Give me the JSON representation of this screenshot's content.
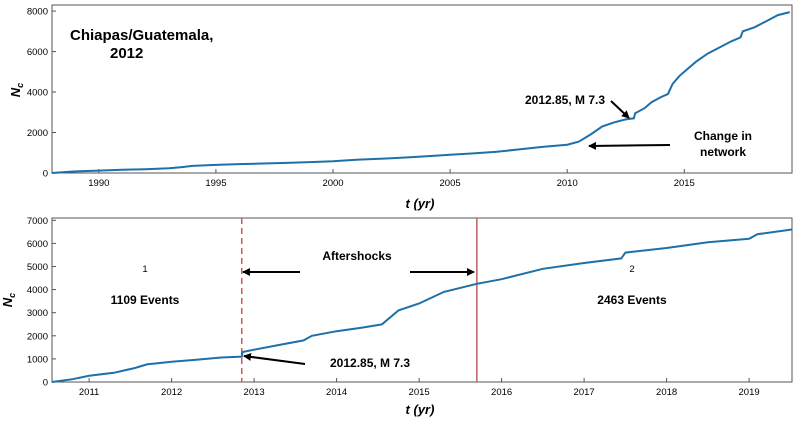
{
  "chart_data": [
    {
      "type": "line",
      "title": "Chiapas/Guatemala,\n2012",
      "xlabel": "t (yr)",
      "ylabel": "Nc",
      "xlim": [
        1988,
        2019.6
      ],
      "ylim": [
        0,
        8300
      ],
      "xticks": [
        1990,
        1995,
        2000,
        2005,
        2010,
        2015
      ],
      "yticks": [
        0,
        2000,
        4000,
        6000,
        8000
      ],
      "line_color": "#1f6fa8",
      "x": [
        1988.0,
        1989.0,
        1990.0,
        1991.0,
        1992.0,
        1993.0,
        1993.5,
        1994.0,
        1995.0,
        1996.0,
        1997.0,
        1998.0,
        1999.0,
        2000.0,
        2001.0,
        2002.0,
        2003.0,
        2004.0,
        2005.0,
        2006.0,
        2007.0,
        2008.0,
        2009.0,
        2010.0,
        2010.5,
        2011.0,
        2011.5,
        2012.0,
        2012.5,
        2012.85,
        2012.9,
        2013.3,
        2013.6,
        2014.0,
        2014.3,
        2014.5,
        2014.8,
        2015.0,
        2015.5,
        2016.0,
        2016.5,
        2017.0,
        2017.4,
        2017.5,
        2018.0,
        2018.5,
        2019.0,
        2019.5
      ],
      "y": [
        0,
        80,
        120,
        160,
        190,
        230,
        280,
        350,
        400,
        440,
        470,
        500,
        540,
        580,
        650,
        700,
        760,
        830,
        900,
        970,
        1050,
        1170,
        1300,
        1400,
        1550,
        1900,
        2300,
        2500,
        2650,
        2700,
        2950,
        3200,
        3500,
        3750,
        3900,
        4400,
        4800,
        5000,
        5500,
        5900,
        6200,
        6500,
        6700,
        7000,
        7200,
        7500,
        7800,
        7950
      ],
      "annotations": [
        {
          "text": "2012.85, M 7.3",
          "points_to": [
            2012.85,
            2750
          ]
        },
        {
          "text": "Change in\nnetwork",
          "points_to": [
            2010.5,
            1350
          ]
        }
      ]
    },
    {
      "type": "line",
      "xlabel": "t (yr)",
      "ylabel": "Nc",
      "xlim": [
        2010.55,
        2019.52
      ],
      "ylim": [
        0,
        7100
      ],
      "xticks": [
        2011,
        2012,
        2013,
        2014,
        2015,
        2016,
        2017,
        2018,
        2019
      ],
      "yticks": [
        0,
        1000,
        2000,
        3000,
        4000,
        5000,
        6000,
        7000
      ],
      "line_color": "#1f6fa8",
      "x": [
        2010.55,
        2010.8,
        2011.0,
        2011.3,
        2011.55,
        2011.7,
        2012.0,
        2012.3,
        2012.6,
        2012.85,
        2012.86,
        2013.0,
        2013.3,
        2013.6,
        2013.7,
        2014.0,
        2014.3,
        2014.55,
        2014.75,
        2015.0,
        2015.3,
        2015.7,
        2016.0,
        2016.5,
        2017.0,
        2017.45,
        2017.5,
        2018.0,
        2018.5,
        2019.0,
        2019.1,
        2019.52
      ],
      "y": [
        0,
        120,
        270,
        400,
        600,
        760,
        880,
        960,
        1060,
        1100,
        1300,
        1400,
        1600,
        1800,
        2000,
        2200,
        2350,
        2500,
        3100,
        3400,
        3900,
        4250,
        4450,
        4900,
        5150,
        5350,
        5600,
        5800,
        6050,
        6200,
        6400,
        6600
      ],
      "vlines": [
        {
          "x": 2012.85,
          "style": "dashed",
          "color": "#d9534f"
        },
        {
          "x": 2015.7,
          "style": "solid",
          "color": "#c06060"
        }
      ],
      "annotations": [
        {
          "text": "Aftershocks",
          "spans": [
            2012.85,
            2015.7
          ]
        },
        {
          "text": "1",
          "region": "left"
        },
        {
          "text": "1109 Events",
          "region": "left"
        },
        {
          "text": "2",
          "region": "right"
        },
        {
          "text": "2463 Events",
          "region": "right"
        },
        {
          "text": "2012.85, M 7.3",
          "points_to": [
            2012.85,
            1100
          ]
        }
      ]
    }
  ]
}
